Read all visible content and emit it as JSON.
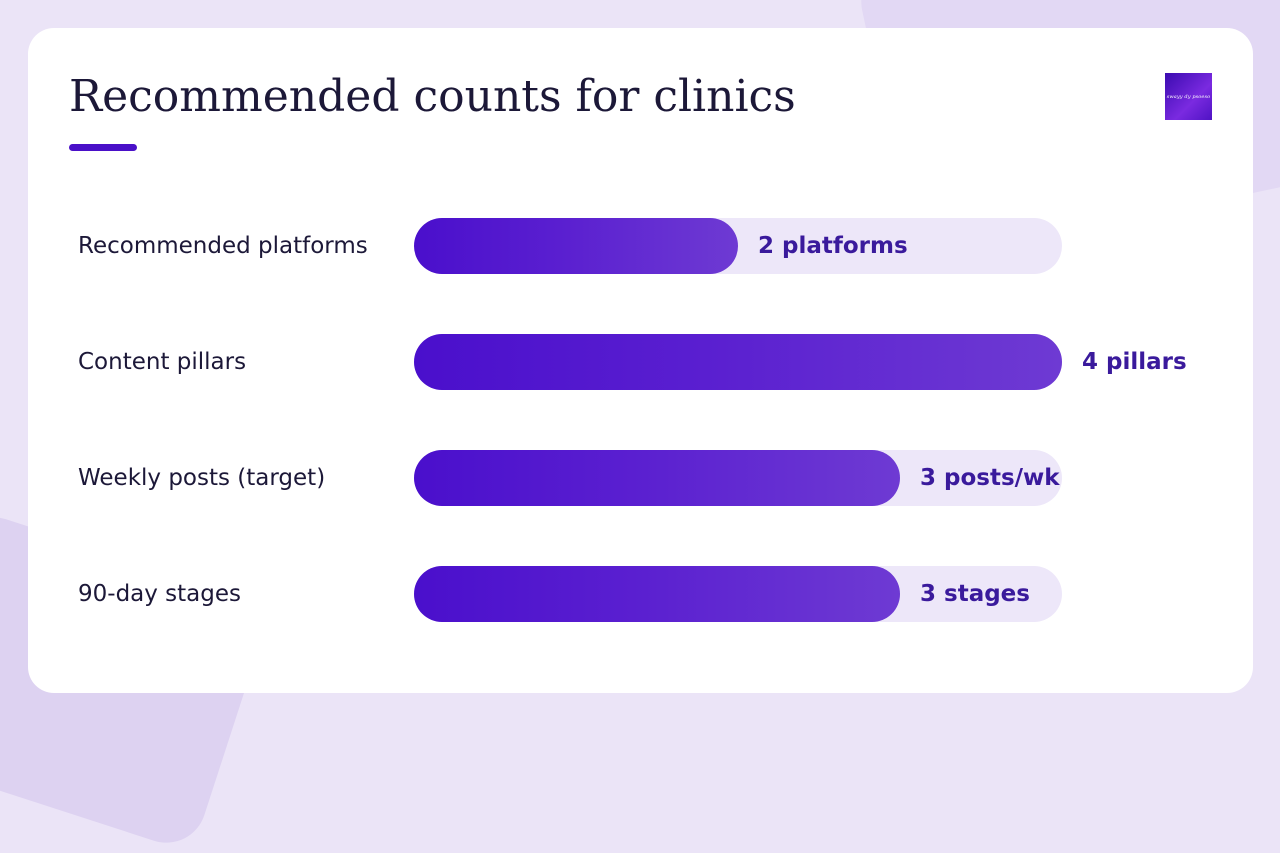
{
  "slide": {
    "title": "Recommended counts for clinics",
    "logo_text": "swayy dy psoeso"
  },
  "chart_data": {
    "type": "bar",
    "orientation": "horizontal",
    "categories": [
      "Recommended platforms",
      "Content pillars",
      "Weekly posts (target)",
      "90-day stages"
    ],
    "values": [
      2,
      4,
      3,
      3
    ],
    "value_labels": [
      "2 platforms",
      "4 pillars",
      "3 posts/wk",
      "3 stages"
    ],
    "xlim": [
      0,
      4
    ],
    "grid": false,
    "legend": "none"
  },
  "colors": {
    "accent": "#4a10c8",
    "bar_start": "#4a0fcc",
    "bar_end": "#6e3ad3",
    "track": "#ede7f9",
    "value_text": "#3a1a9c",
    "text": "#1c1838"
  }
}
